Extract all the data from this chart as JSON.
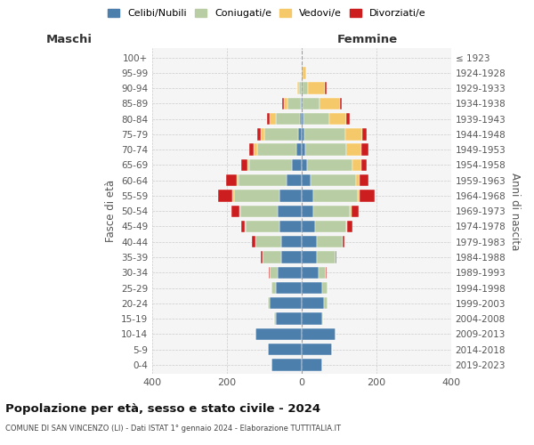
{
  "age_groups": [
    "0-4",
    "5-9",
    "10-14",
    "15-19",
    "20-24",
    "25-29",
    "30-34",
    "35-39",
    "40-44",
    "45-49",
    "50-54",
    "55-59",
    "60-64",
    "65-69",
    "70-74",
    "75-79",
    "80-84",
    "85-89",
    "90-94",
    "95-99",
    "100+"
  ],
  "birth_years": [
    "2019-2023",
    "2014-2018",
    "2009-2013",
    "2004-2008",
    "1999-2003",
    "1994-1998",
    "1989-1993",
    "1984-1988",
    "1979-1983",
    "1974-1978",
    "1969-1973",
    "1964-1968",
    "1959-1963",
    "1954-1958",
    "1949-1953",
    "1944-1948",
    "1939-1943",
    "1934-1938",
    "1929-1933",
    "1924-1928",
    "≤ 1923"
  ],
  "maschi": {
    "celibi": [
      80,
      90,
      125,
      70,
      85,
      70,
      65,
      55,
      55,
      60,
      65,
      60,
      40,
      25,
      15,
      10,
      5,
      2,
      0,
      0,
      0
    ],
    "coniugati": [
      0,
      0,
      0,
      3,
      5,
      10,
      20,
      50,
      70,
      90,
      100,
      120,
      130,
      115,
      105,
      90,
      65,
      35,
      8,
      0,
      0
    ],
    "vedovi": [
      0,
      0,
      0,
      0,
      0,
      0,
      0,
      0,
      0,
      2,
      3,
      5,
      3,
      5,
      8,
      10,
      15,
      10,
      5,
      0,
      0
    ],
    "divorziati": [
      0,
      0,
      0,
      0,
      0,
      0,
      3,
      5,
      8,
      10,
      20,
      40,
      30,
      18,
      12,
      10,
      8,
      5,
      0,
      0,
      0
    ]
  },
  "femmine": {
    "nubili": [
      55,
      80,
      90,
      55,
      60,
      55,
      45,
      40,
      40,
      35,
      30,
      30,
      25,
      15,
      10,
      8,
      5,
      3,
      2,
      2,
      0
    ],
    "coniugate": [
      0,
      0,
      0,
      3,
      10,
      15,
      20,
      50,
      70,
      85,
      100,
      120,
      120,
      120,
      110,
      110,
      70,
      45,
      15,
      0,
      0
    ],
    "vedove": [
      0,
      0,
      0,
      0,
      0,
      0,
      0,
      0,
      0,
      2,
      3,
      5,
      10,
      25,
      40,
      45,
      45,
      55,
      45,
      10,
      0
    ],
    "divorziate": [
      0,
      0,
      0,
      0,
      0,
      0,
      3,
      3,
      5,
      15,
      20,
      40,
      25,
      15,
      18,
      12,
      8,
      5,
      5,
      0,
      0
    ]
  },
  "colors": {
    "celibi": "#4d7fac",
    "coniugati": "#b8cda4",
    "vedovi": "#f5c96a",
    "divorziati": "#cc1e1e"
  },
  "title": "Popolazione per età, sesso e stato civile - 2024",
  "subtitle": "COMUNE DI SAN VINCENZO (LI) - Dati ISTAT 1° gennaio 2024 - Elaborazione TUTTITALIA.IT",
  "xlabel_left": "Maschi",
  "xlabel_right": "Femmine",
  "ylabel_left": "Fasce di età",
  "ylabel_right": "Anni di nascita",
  "xlim": 400,
  "legend_labels": [
    "Celibi/Nubili",
    "Coniugati/e",
    "Vedovi/e",
    "Divorziati/e"
  ],
  "background_color": "#f5f5f5"
}
